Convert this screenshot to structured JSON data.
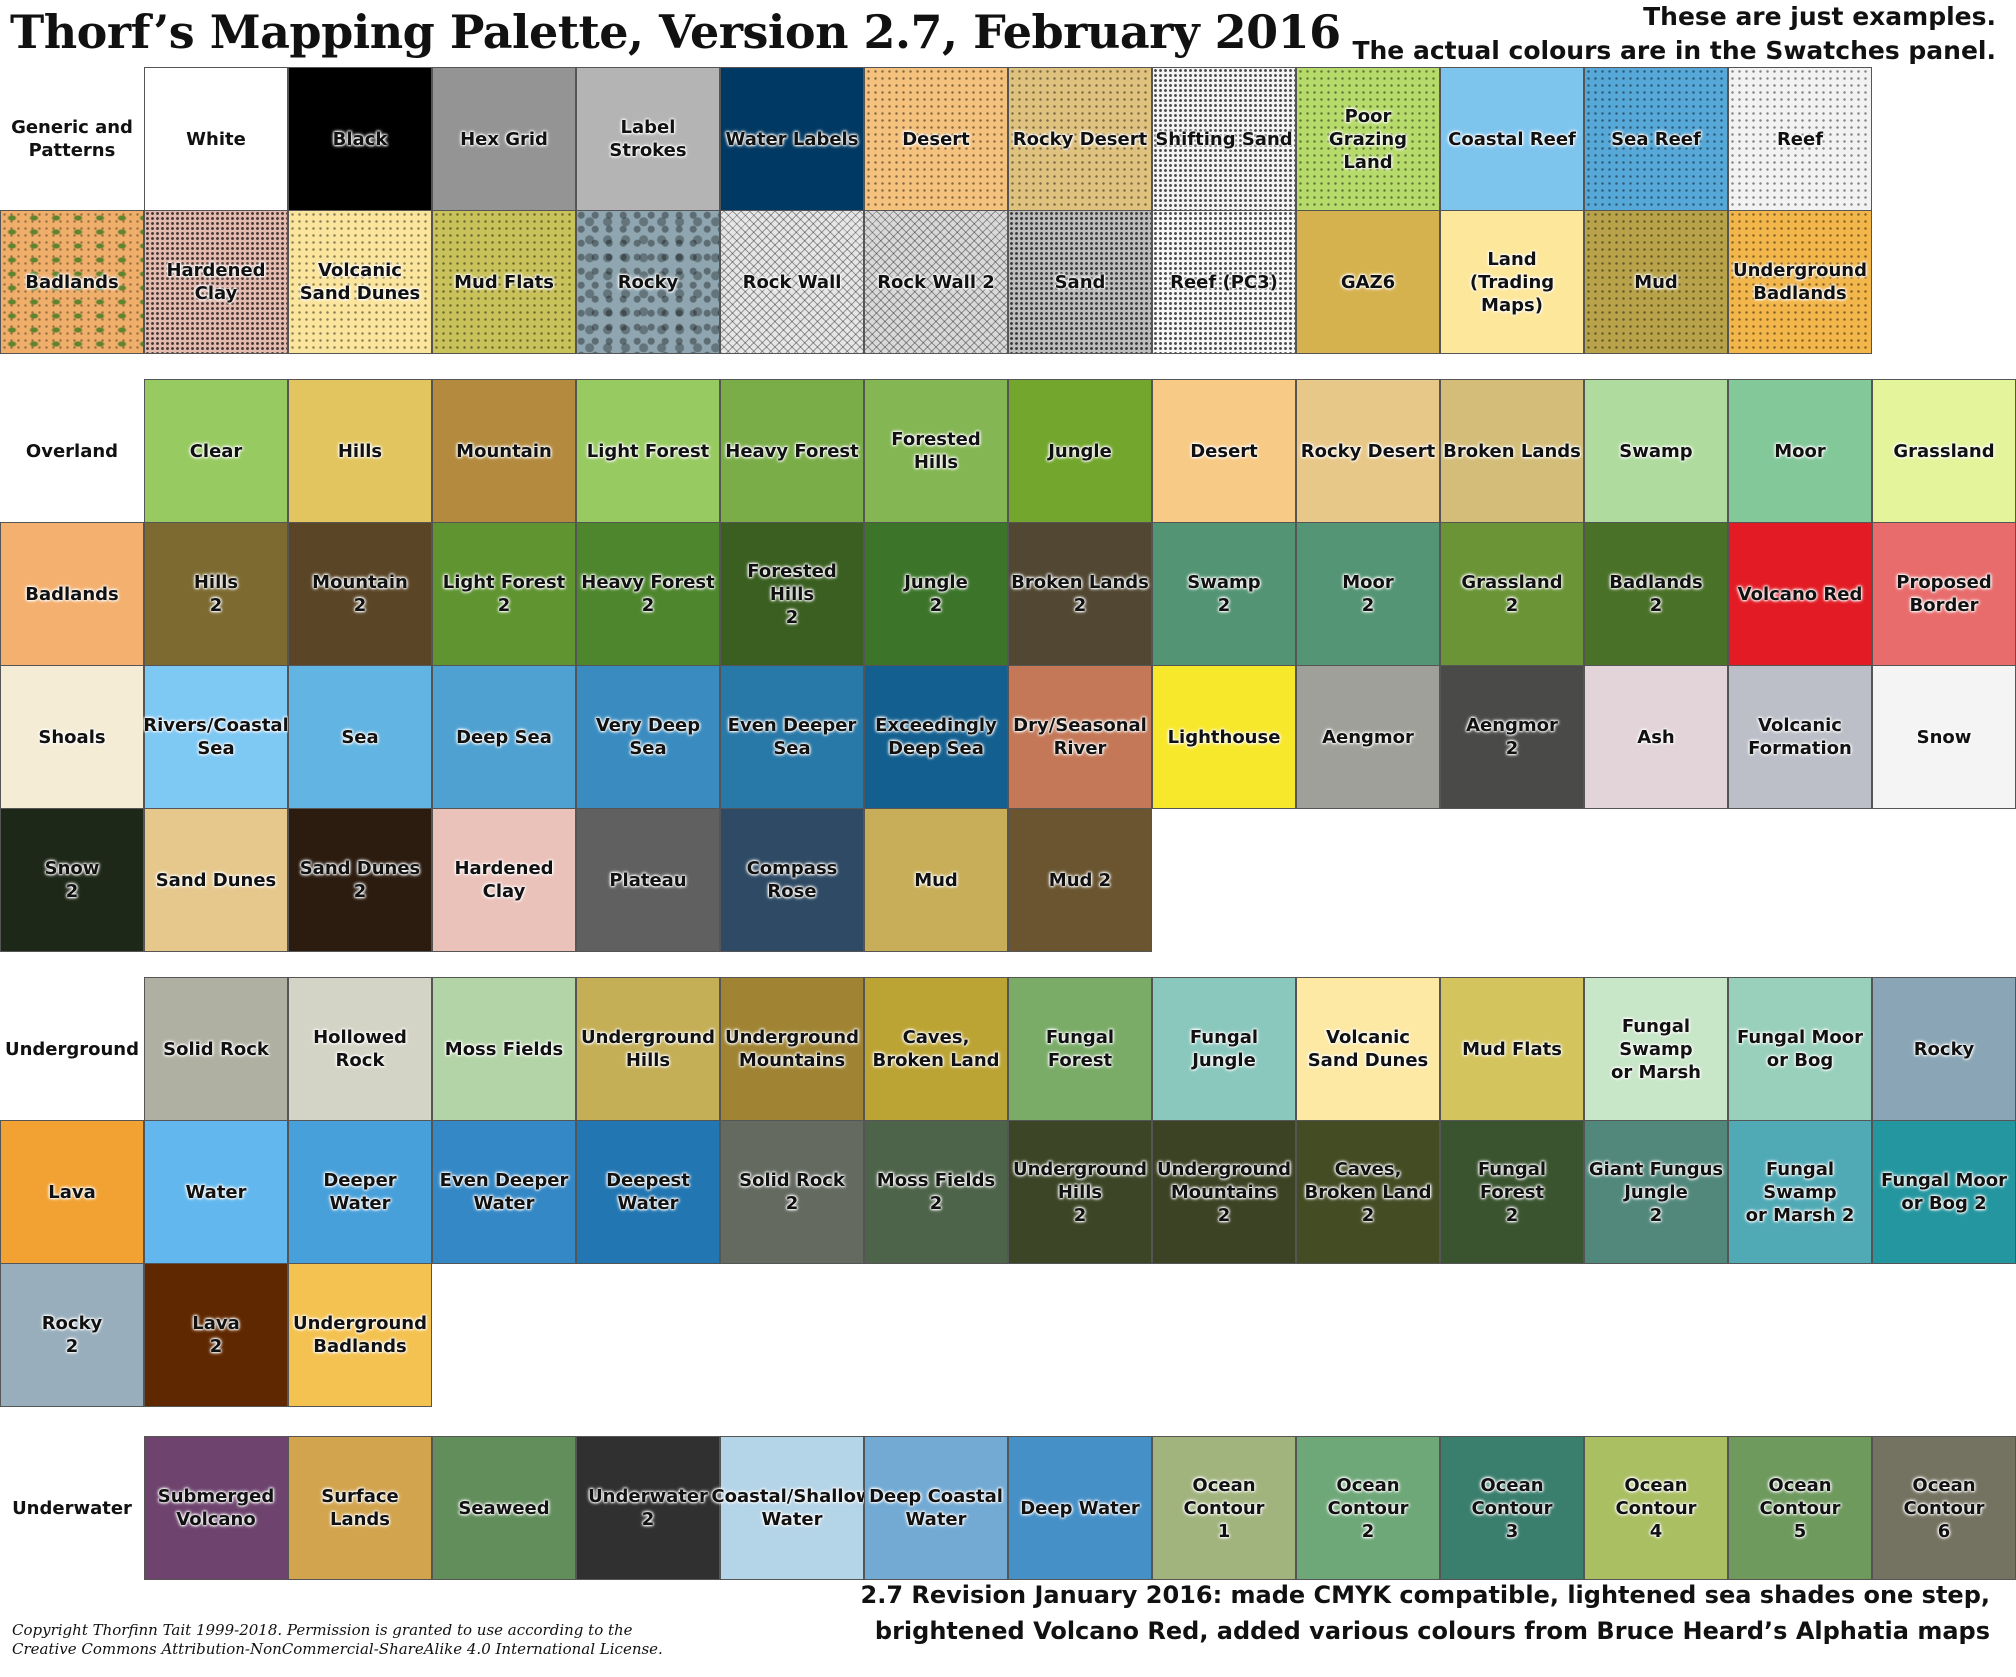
{
  "header": {
    "title": "Thorf’s Mapping Palette, Version 2.7, February 2016",
    "note_line1": "These are just examples.",
    "note_line2": "The actual colours are in the Swatches panel."
  },
  "sections": [
    {
      "label": "Generic and Patterns",
      "label_row": 0,
      "rows": [
        {
          "row": 0,
          "start_col": 1,
          "cells": [
            {
              "label": "White",
              "color": "#ffffff"
            },
            {
              "label": "Black",
              "color": "#000000"
            },
            {
              "label": "Hex Grid",
              "color": "#949494"
            },
            {
              "label": "Label Strokes",
              "color": "#b4b4b4"
            },
            {
              "label": "Water Labels",
              "color": "#003963"
            },
            {
              "label": "Desert",
              "color": "#f5c27d",
              "pattern": "dots"
            },
            {
              "label": "Rocky Desert",
              "color": "#e0c27f",
              "pattern": "dots"
            },
            {
              "label": "Shifting Sand",
              "color": "#f4f4f4",
              "pattern": "dense"
            },
            {
              "label": "Poor\nGrazing\nLand",
              "color": "#b6db6a",
              "pattern": "dots"
            },
            {
              "label": "Coastal Reef",
              "color": "#7ec5ee"
            },
            {
              "label": "Sea Reef",
              "color": "#56a8d8",
              "pattern": "dots"
            },
            {
              "label": "Reef",
              "color": "#f2f2f2",
              "pattern": "dots"
            }
          ]
        },
        {
          "row": 1,
          "start_col": 0,
          "cells": [
            {
              "label": "Badlands",
              "color": "#f0ae6b",
              "pattern": "grass"
            },
            {
              "label": "Hardened\nClay",
              "color": "#e4b9ae",
              "pattern": "dense"
            },
            {
              "label": "Volcanic\nSand Dunes",
              "color": "#fbe59c",
              "pattern": "dots"
            },
            {
              "label": "Mud Flats",
              "color": "#c9c15a",
              "pattern": "dots"
            },
            {
              "label": "Rocky",
              "color": "#8fa6b0",
              "pattern": "stone"
            },
            {
              "label": "Rock Wall",
              "color": "#e6e6e6",
              "pattern": "hatch"
            },
            {
              "label": "Rock Wall 2",
              "color": "#d9d9d9",
              "pattern": "hatch"
            },
            {
              "label": "Sand",
              "color": "#bdbdbd",
              "pattern": "dense"
            },
            {
              "label": "Reef (PC3)",
              "color": "#f6f6f6",
              "pattern": "dense"
            },
            {
              "label": "GAZ6",
              "color": "#d6b24e"
            },
            {
              "label": "Land\n(Trading\nMaps)",
              "color": "#fde79a"
            },
            {
              "label": "Mud",
              "color": "#b9a34a",
              "pattern": "dots"
            },
            {
              "label": "Underground\nBadlands",
              "color": "#f2b64a",
              "pattern": "dots"
            }
          ]
        }
      ]
    },
    {
      "label": "Overland",
      "label_row": 2,
      "rows": [
        {
          "row": 2,
          "start_col": 1,
          "cells": [
            {
              "label": "Clear",
              "color": "#98ca62"
            },
            {
              "label": "Hills",
              "color": "#e2c55e"
            },
            {
              "label": "Mountain",
              "color": "#b38a3e"
            },
            {
              "label": "Light Forest",
              "color": "#98ca62"
            },
            {
              "label": "Heavy Forest",
              "color": "#7aad48"
            },
            {
              "label": "Forested Hills",
              "color": "#84b653"
            },
            {
              "label": "Jungle",
              "color": "#72a62c"
            },
            {
              "label": "Desert",
              "color": "#f7ca86"
            },
            {
              "label": "Rocky Desert",
              "color": "#e8c888"
            },
            {
              "label": "Broken Lands",
              "color": "#d3bd78"
            },
            {
              "label": "Swamp",
              "color": "#afdc9e"
            },
            {
              "label": "Moor",
              "color": "#82c899"
            },
            {
              "label": "Grassland",
              "color": "#e4f49a"
            }
          ]
        },
        {
          "row": 3,
          "start_col": 0,
          "cells": [
            {
              "label": "Badlands",
              "color": "#f4b06e"
            },
            {
              "label": "Hills\n2",
              "color": "#7c6a30"
            },
            {
              "label": "Mountain\n2",
              "color": "#5a4526"
            },
            {
              "label": "Light Forest\n2",
              "color": "#5f9430"
            },
            {
              "label": "Heavy Forest\n2",
              "color": "#4e862e"
            },
            {
              "label": "Forested Hills\n2",
              "color": "#3a5f20"
            },
            {
              "label": "Jungle\n2",
              "color": "#3c752a"
            },
            {
              "label": "Broken Lands\n2",
              "color": "#514732"
            },
            {
              "label": "Swamp\n2",
              "color": "#539474"
            },
            {
              "label": "Moor\n2",
              "color": "#539574"
            },
            {
              "label": "Grassland\n2",
              "color": "#6a9436"
            },
            {
              "label": "Badlands\n2",
              "color": "#4a7128"
            },
            {
              "label": "Volcano Red",
              "color": "#e31b24"
            },
            {
              "label": "Proposed\nBorder",
              "color": "#e86c6c"
            }
          ]
        },
        {
          "row": 4,
          "start_col": 0,
          "cells": [
            {
              "label": "Shoals",
              "color": "#f4ecd4"
            },
            {
              "label": "Rivers/Coastal\nSea",
              "color": "#7ec8f4"
            },
            {
              "label": "Sea",
              "color": "#62b4e2"
            },
            {
              "label": "Deep Sea",
              "color": "#4fa1d2"
            },
            {
              "label": "Very Deep Sea",
              "color": "#3a8cc0"
            },
            {
              "label": "Even Deeper\nSea",
              "color": "#2878a8"
            },
            {
              "label": "Exceedingly\nDeep Sea",
              "color": "#135f90"
            },
            {
              "label": "Dry/Seasonal\nRiver",
              "color": "#c47857"
            },
            {
              "label": "Lighthouse",
              "color": "#f8e82c"
            },
            {
              "label": "Aengmor",
              "color": "#a0a09a"
            },
            {
              "label": "Aengmor\n2",
              "color": "#4a4a48"
            },
            {
              "label": "Ash",
              "color": "#e2d4d8"
            },
            {
              "label": "Volcanic\nFormation",
              "color": "#bcbec8"
            },
            {
              "label": "Snow",
              "color": "#f4f4f4"
            }
          ]
        },
        {
          "row": 5,
          "start_col": 0,
          "cells": [
            {
              "label": "Snow\n2",
              "color": "#1e2818"
            },
            {
              "label": "Sand Dunes",
              "color": "#e6c88c"
            },
            {
              "label": "Sand Dunes\n2",
              "color": "#2c1c10"
            },
            {
              "label": "Hardened\nClay",
              "color": "#ebc2ba"
            },
            {
              "label": "Plateau",
              "color": "#606060"
            },
            {
              "label": "Compass Rose",
              "color": "#2e4a64"
            },
            {
              "label": "Mud",
              "color": "#c8ae58"
            },
            {
              "label": "Mud 2",
              "color": "#6a5530"
            }
          ]
        }
      ]
    },
    {
      "label": "Underground",
      "label_row": 6,
      "rows": [
        {
          "row": 6,
          "start_col": 1,
          "cells": [
            {
              "label": "Solid Rock",
              "color": "#b0b0a2"
            },
            {
              "label": "Hollowed\nRock",
              "color": "#d4d4c6"
            },
            {
              "label": "Moss Fields",
              "color": "#b2d4a6"
            },
            {
              "label": "Underground\nHills",
              "color": "#c4ae56"
            },
            {
              "label": "Underground\nMountains",
              "color": "#a08434"
            },
            {
              "label": "Caves,\nBroken Land",
              "color": "#bca434"
            },
            {
              "label": "Fungal Forest",
              "color": "#7aac68"
            },
            {
              "label": "Fungal Jungle",
              "color": "#8ac8be"
            },
            {
              "label": "Volcanic\nSand Dunes",
              "color": "#fde9a4"
            },
            {
              "label": "Mud Flats",
              "color": "#d4c45e"
            },
            {
              "label": "Fungal Swamp\nor Marsh",
              "color": "#c8e6c8"
            },
            {
              "label": "Fungal Moor\nor Bog",
              "color": "#98d0bc"
            },
            {
              "label": "Rocky",
              "color": "#8aa6b6"
            }
          ]
        },
        {
          "row": 7,
          "start_col": 0,
          "cells": [
            {
              "label": "Lava",
              "color": "#f2a232"
            },
            {
              "label": "Water",
              "color": "#62b8ee"
            },
            {
              "label": "Deeper Water",
              "color": "#48a0da"
            },
            {
              "label": "Even Deeper\nWater",
              "color": "#3488c6"
            },
            {
              "label": "Deepest Water",
              "color": "#2276b2"
            },
            {
              "label": "Solid Rock\n2",
              "color": "#646a60"
            },
            {
              "label": "Moss Fields\n2",
              "color": "#4e644a"
            },
            {
              "label": "Underground\nHills\n2",
              "color": "#3c4626"
            },
            {
              "label": "Underground\nMountains\n2",
              "color": "#3c4224"
            },
            {
              "label": "Caves,\nBroken Land\n2",
              "color": "#444c24"
            },
            {
              "label": "Fungal Forest\n2",
              "color": "#3a5430"
            },
            {
              "label": "Giant Fungus\nJungle\n2",
              "color": "#52887c"
            },
            {
              "label": "Fungal Swamp\nor Marsh 2",
              "color": "#50aab6"
            },
            {
              "label": "Fungal Moor\nor Bog 2",
              "color": "#2496a0"
            }
          ]
        },
        {
          "row": 8,
          "start_col": 0,
          "cells": [
            {
              "label": "Rocky\n2",
              "color": "#98aebc"
            },
            {
              "label": "Lava\n2",
              "color": "#602800"
            },
            {
              "label": "Underground\nBadlands",
              "color": "#f4c250"
            }
          ]
        }
      ]
    },
    {
      "label": "Underwater",
      "label_row": 9,
      "rows": [
        {
          "row": 9,
          "start_col": 1,
          "cells": [
            {
              "label": "Submerged\nVolcano",
              "color": "#6e446e"
            },
            {
              "label": "Surface Lands",
              "color": "#d2a44e"
            },
            {
              "label": "Seaweed",
              "color": "#628e5c"
            },
            {
              "label": "Underwater\n2",
              "color": "#303030"
            },
            {
              "label": "Coastal/Shallow\nWater",
              "color": "#b4d4e8"
            },
            {
              "label": "Deep Coastal\nWater",
              "color": "#72aad4"
            },
            {
              "label": "Deep Water",
              "color": "#4690c8"
            },
            {
              "label": "Ocean Contour\n1",
              "color": "#a2b47e"
            },
            {
              "label": "Ocean Contour\n2",
              "color": "#6ea878"
            },
            {
              "label": "Ocean Contour\n3",
              "color": "#3a7e6e"
            },
            {
              "label": "Ocean Contour\n4",
              "color": "#aabe62"
            },
            {
              "label": "Ocean Contour\n5",
              "color": "#6e9a5e"
            },
            {
              "label": "Ocean Contour\n6",
              "color": "#747260"
            }
          ]
        }
      ]
    }
  ],
  "footer": {
    "copyright_line1": "Copyright Thorfinn Tait 1999-2018. Permission is granted to use according to the",
    "copyright_line2": "Creative Commons Attribution-NonCommercial-ShareAlike 4.0 International License.",
    "revision_line1": "2.7 Revision January 2016: made CMYK compatible, lightened sea shades one step,",
    "revision_line2": "brightened Volcano Red, added various colours from Bruce Heard’s Alphatia maps"
  }
}
